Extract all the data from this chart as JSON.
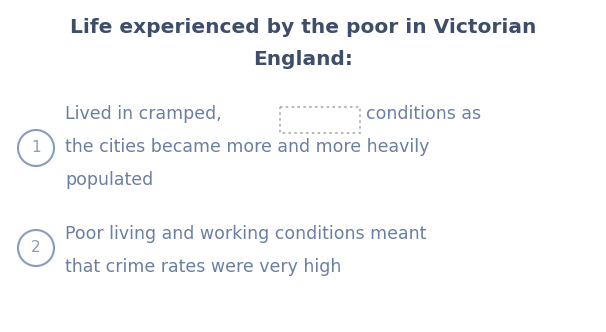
{
  "title_line1": "Life experienced by the poor in Victorian",
  "title_line2": "England:",
  "title_fontsize": 14.5,
  "title_color": "#3d4d6a",
  "body_color": "#6b7fa3",
  "body_fontsize": 12.5,
  "background_color": "#ffffff",
  "item1_line1": "Lived in cramped,",
  "item1_line1_end": "conditions as",
  "item1_line2": "the cities became more and more heavily",
  "item1_line3": "populated",
  "item2_line1": "Poor living and working conditions meant",
  "item2_line2": "that crime rates were very high",
  "circle_color": "#8a9bbf",
  "dashed_box_color": "#aaaaaa"
}
